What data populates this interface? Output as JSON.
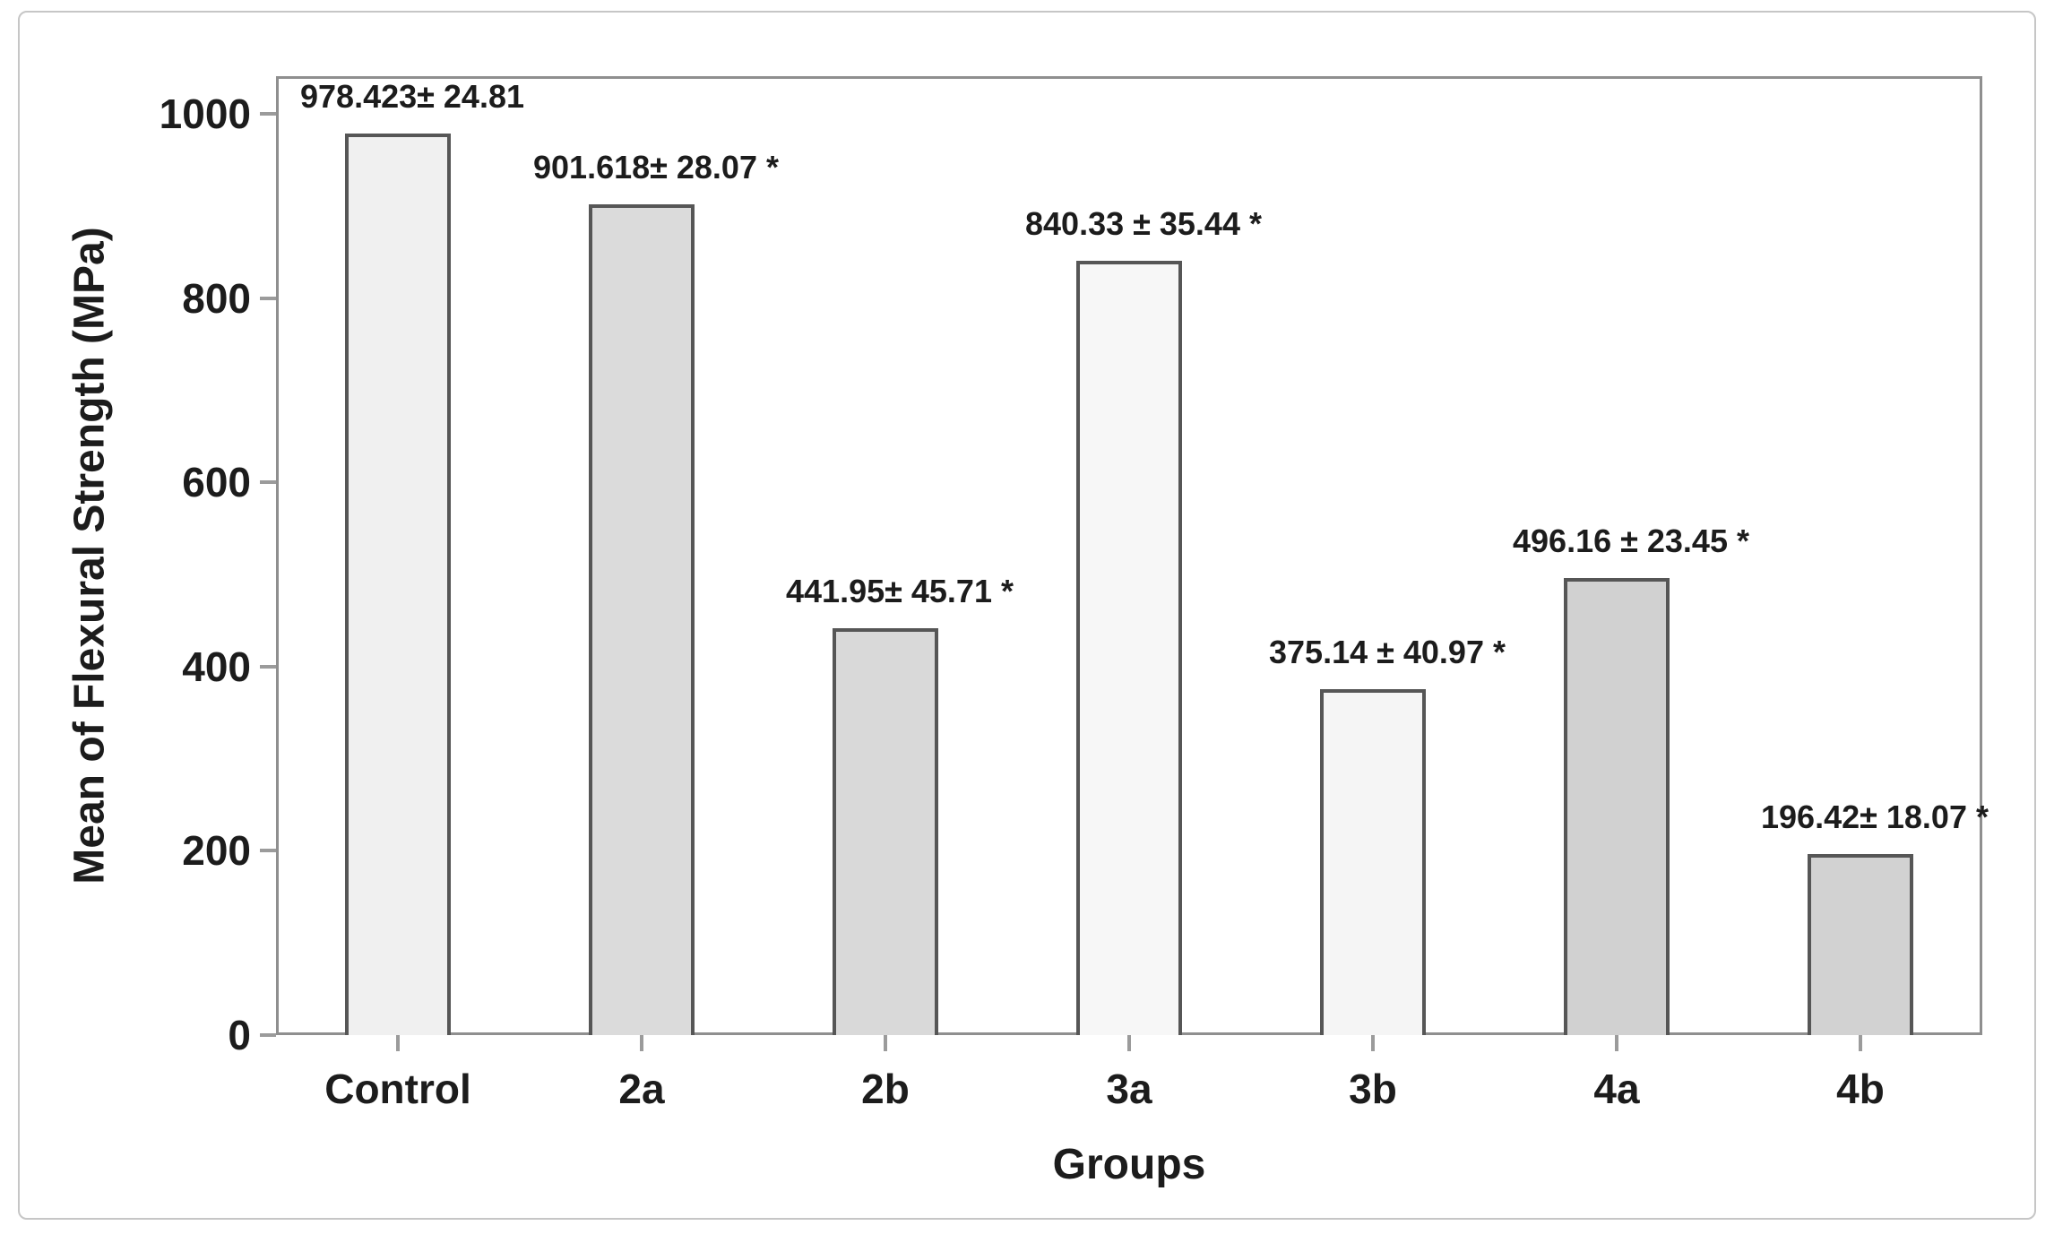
{
  "chart_data": {
    "type": "bar",
    "title": "",
    "xlabel": "Groups",
    "ylabel": "Mean of Flexural Strength (MPa)",
    "categories": [
      "Control",
      "2a",
      "2b",
      "3a",
      "3b",
      "4a",
      "4b"
    ],
    "values": [
      978.423,
      901.618,
      441.95,
      840.33,
      375.14,
      496.16,
      196.42
    ],
    "errors": [
      24.81,
      28.07,
      45.71,
      35.44,
      40.97,
      23.45,
      18.07
    ],
    "bar_labels": [
      "978.423± 24.81",
      "901.618± 28.07 *",
      "441.95± 45.71 *",
      "840.33 ± 35.44 *",
      "375.14 ± 40.97 *",
      "496.16 ± 23.45 *",
      "196.42± 18.07 *"
    ],
    "significance_marker": "*",
    "y_ticks": [
      0,
      200,
      400,
      600,
      800,
      1000
    ],
    "ylim": [
      0,
      1000
    ],
    "grid": false,
    "legend": false,
    "legend_position": "none",
    "bar_fills": [
      "#f0f0f0",
      "#dbdbdb",
      "#d9d9d9",
      "#f7f7f7",
      "#f5f5f5",
      "#d1d1d1",
      "#d2d2d2"
    ],
    "bar_border_color": "#565656",
    "frame_color": "#8f8f8f",
    "tick_color": "#9b9b9b",
    "text_color": "#1c1c1c",
    "outer_border_color": "#c6c6c6"
  }
}
